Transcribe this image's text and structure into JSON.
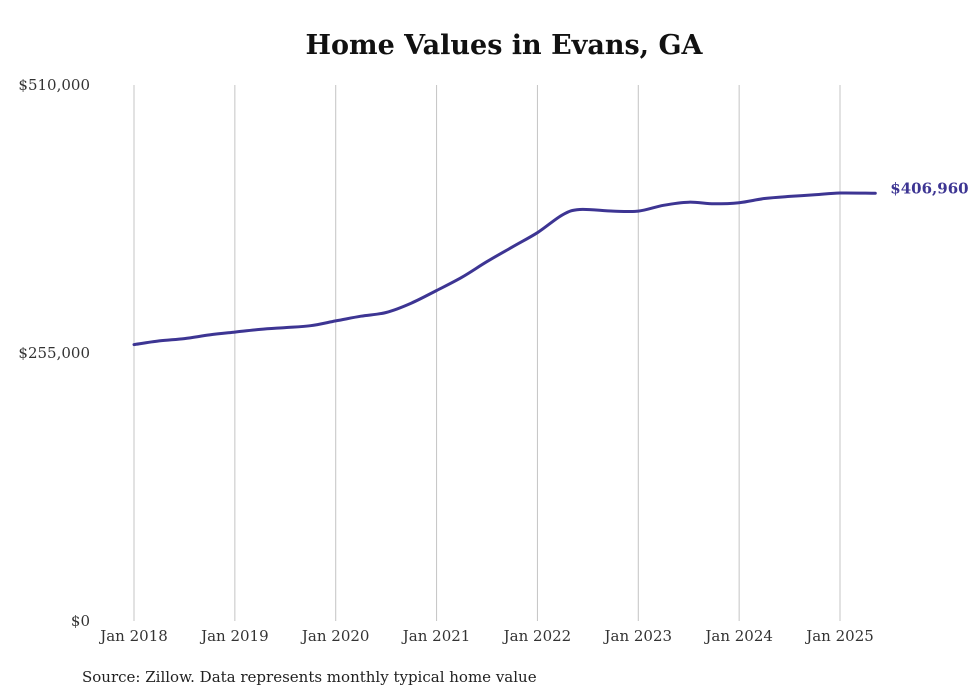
{
  "chart_data": {
    "type": "line",
    "title": "Home Values in Evans, GA",
    "xlabel": "",
    "ylabel": "",
    "ylim": [
      0,
      510000
    ],
    "y_ticks": [
      {
        "value": 0,
        "label": "$0"
      },
      {
        "value": 255000,
        "label": "$255,000"
      },
      {
        "value": 510000,
        "label": "$510,000"
      }
    ],
    "x_ticks": [
      {
        "value": 2018.0,
        "label": "Jan 2018"
      },
      {
        "value": 2019.0,
        "label": "Jan 2019"
      },
      {
        "value": 2020.0,
        "label": "Jan 2020"
      },
      {
        "value": 2021.0,
        "label": "Jan 2021"
      },
      {
        "value": 2022.0,
        "label": "Jan 2022"
      },
      {
        "value": 2023.0,
        "label": "Jan 2023"
      },
      {
        "value": 2024.0,
        "label": "Jan 2024"
      },
      {
        "value": 2025.0,
        "label": "Jan 2025"
      }
    ],
    "xlim": [
      2018.0,
      2025.35
    ],
    "grid": "vertical",
    "line_color": "#3d3593",
    "series": [
      {
        "end_label": "$406,960",
        "points": [
          {
            "x": 2018.0,
            "y": 263000
          },
          {
            "x": 2018.25,
            "y": 266500
          },
          {
            "x": 2018.5,
            "y": 268700
          },
          {
            "x": 2018.75,
            "y": 272200
          },
          {
            "x": 2019.0,
            "y": 274900
          },
          {
            "x": 2019.25,
            "y": 277500
          },
          {
            "x": 2019.5,
            "y": 279200
          },
          {
            "x": 2019.75,
            "y": 281000
          },
          {
            "x": 2020.0,
            "y": 285500
          },
          {
            "x": 2020.25,
            "y": 290000
          },
          {
            "x": 2020.5,
            "y": 293500
          },
          {
            "x": 2020.75,
            "y": 302500
          },
          {
            "x": 2021.0,
            "y": 314500
          },
          {
            "x": 2021.25,
            "y": 327000
          },
          {
            "x": 2021.5,
            "y": 342000
          },
          {
            "x": 2021.75,
            "y": 355800
          },
          {
            "x": 2022.0,
            "y": 369500
          },
          {
            "x": 2022.25,
            "y": 386500
          },
          {
            "x": 2022.42,
            "y": 391500
          },
          {
            "x": 2022.75,
            "y": 390000
          },
          {
            "x": 2023.0,
            "y": 390000
          },
          {
            "x": 2023.25,
            "y": 395500
          },
          {
            "x": 2023.5,
            "y": 398500
          },
          {
            "x": 2023.75,
            "y": 397000
          },
          {
            "x": 2024.0,
            "y": 398000
          },
          {
            "x": 2024.25,
            "y": 402000
          },
          {
            "x": 2024.5,
            "y": 404000
          },
          {
            "x": 2024.75,
            "y": 405500
          },
          {
            "x": 2025.0,
            "y": 407200
          },
          {
            "x": 2025.35,
            "y": 406960
          }
        ]
      }
    ]
  },
  "footer": {
    "source": "Source: Zillow. Data represents monthly typical home value"
  }
}
